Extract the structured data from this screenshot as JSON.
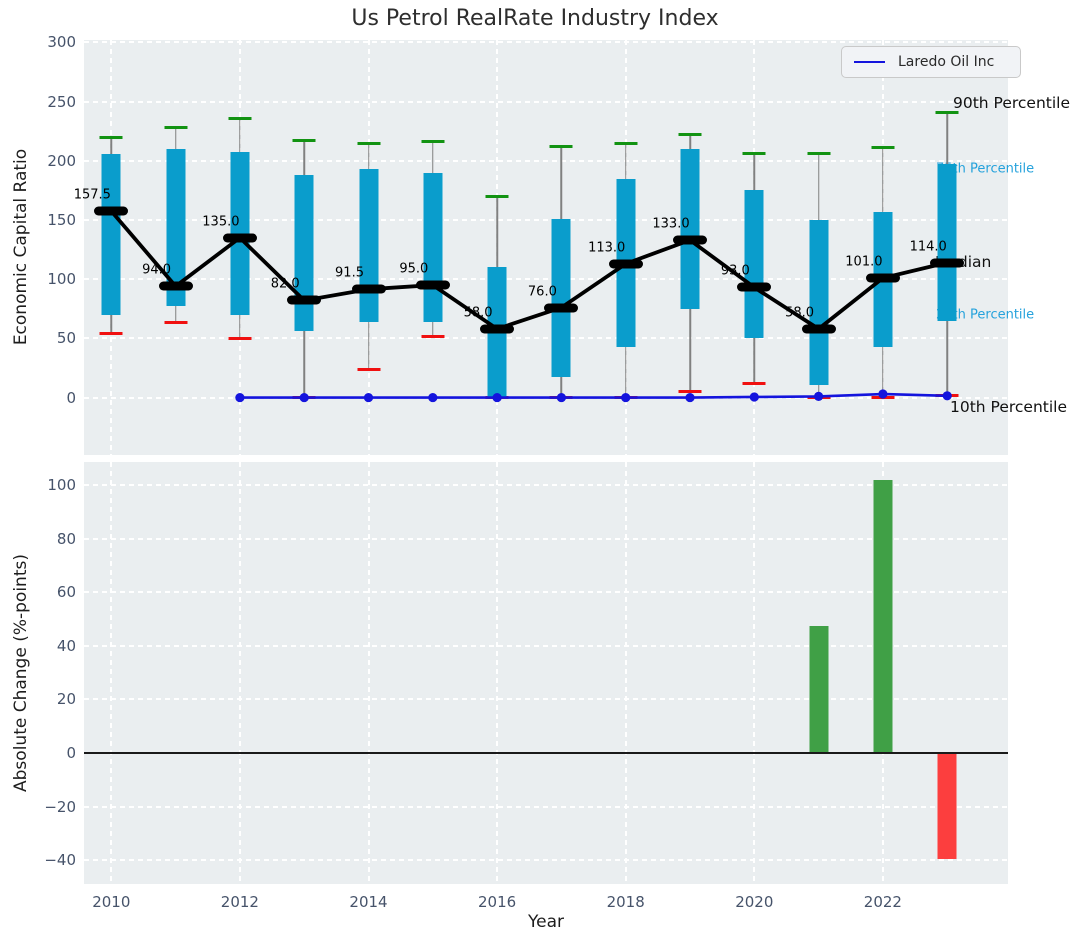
{
  "title": "Us Petrol RealRate Industry Index",
  "legend": {
    "series": "Laredo Oil Inc",
    "color": "#1414dd"
  },
  "colors": {
    "box": "#0a9dcc",
    "cap_high": "#129312",
    "cap_low": "#f01010",
    "median": "#000000",
    "company_line": "#1414dd",
    "bar_positive": "#40a046",
    "bar_negative": "#fc3e3e",
    "panel_bg": "#eaeef0",
    "tick_text": "#46536a"
  },
  "chart_data": [
    {
      "type": "boxwhisker_line",
      "title": "Us Petrol RealRate Industry Index",
      "ylabel": "Economic Capital Ratio",
      "ylim": [
        -48,
        302
      ],
      "ytick_values": [
        300,
        250,
        200,
        150,
        100,
        50,
        0
      ],
      "ytick_labels": [
        "300",
        "250",
        "200",
        "150",
        "100",
        "50",
        "0"
      ],
      "grid": true,
      "legend_position": "upper right",
      "years": [
        2010,
        2011,
        2012,
        2013,
        2014,
        2015,
        2016,
        2017,
        2018,
        2019,
        2020,
        2021,
        2022,
        2023
      ],
      "median": [
        157.5,
        94.0,
        135.0,
        82.0,
        91.5,
        95.0,
        58.0,
        76.0,
        113.0,
        133.0,
        93.0,
        58.0,
        101.0,
        114.0
      ],
      "median_labels": [
        "157.5",
        "94.0",
        "135.0",
        "82.0",
        "91.5",
        "95.0",
        "58.0",
        "76.0",
        "113.0",
        "133.0",
        "93.0",
        "58.0",
        "101.0",
        "114.0"
      ],
      "p25": [
        70,
        77,
        70,
        56,
        64,
        64,
        0,
        17,
        43,
        75,
        50,
        11,
        43,
        65
      ],
      "p75": [
        206,
        210,
        207,
        188,
        193,
        190,
        110,
        151,
        185,
        210,
        175,
        150,
        157,
        197
      ],
      "p10": [
        54,
        63,
        50,
        0,
        24,
        52,
        0,
        0,
        0,
        5,
        12,
        0,
        0,
        2
      ],
      "p90": [
        220,
        228,
        236,
        217,
        215,
        216,
        170,
        212,
        215,
        222,
        206,
        206,
        211,
        241
      ],
      "series": [
        {
          "name": "Laredo Oil Inc",
          "years": [
            2012,
            2013,
            2014,
            2015,
            2016,
            2017,
            2018,
            2019,
            2020,
            2021,
            2022,
            2023
          ],
          "values": [
            0,
            0,
            0,
            0,
            0,
            0,
            0,
            0,
            0.5,
            1,
            3,
            1.5
          ]
        }
      ],
      "right_labels": [
        {
          "text": "90th Percentile",
          "style": "black",
          "anchor_value": 248
        },
        {
          "text": "75th Percentile",
          "style": "cyan",
          "anchor_value": 193
        },
        {
          "text": "Median",
          "style": "black",
          "anchor_value": 114
        },
        {
          "text": "25th Percentile",
          "style": "cyan",
          "anchor_value": 70
        },
        {
          "text": "10th Percentile",
          "style": "black",
          "anchor_value": -8
        }
      ]
    },
    {
      "type": "bar",
      "ylabel": "Absolute Change (%-points)",
      "xlabel": "Year",
      "ylim": [
        -49,
        109
      ],
      "ytick_values": [
        100,
        80,
        60,
        40,
        20,
        0,
        -20,
        -40
      ],
      "ytick_labels": [
        "100",
        "80",
        "60",
        "40",
        "20",
        "0",
        "−20",
        "−40"
      ],
      "xtick_values": [
        2010,
        2012,
        2014,
        2016,
        2018,
        2020,
        2022
      ],
      "xtick_labels": [
        "2010",
        "2012",
        "2014",
        "2016",
        "2018",
        "2020",
        "2022"
      ],
      "grid": true,
      "zero_line": 0,
      "bars": [
        {
          "year": 2021,
          "value": 47.5
        },
        {
          "year": 2022,
          "value": 102
        },
        {
          "year": 2023,
          "value": -39.5
        }
      ]
    }
  ]
}
